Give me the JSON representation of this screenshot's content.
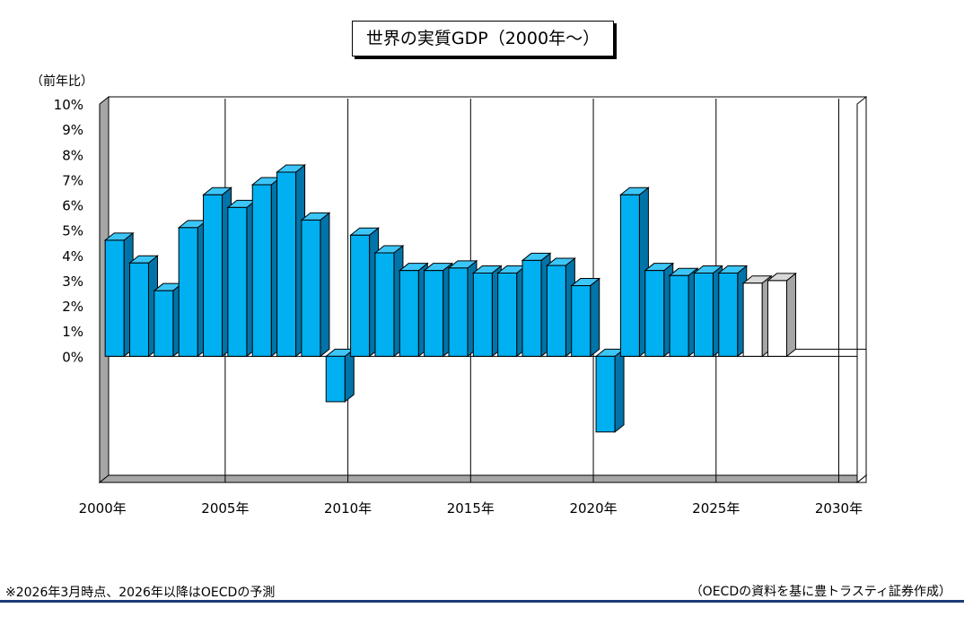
{
  "chart_data": {
    "type": "bar",
    "title": "世界の実質GDP（2000年〜）",
    "unit_label": "（前年比）",
    "years": [
      2000,
      2001,
      2002,
      2003,
      2004,
      2005,
      2006,
      2007,
      2008,
      2009,
      2010,
      2011,
      2012,
      2013,
      2014,
      2015,
      2016,
      2017,
      2018,
      2019,
      2020,
      2021,
      2022,
      2023,
      2024,
      2025,
      2026,
      2027
    ],
    "values": [
      4.6,
      3.7,
      2.6,
      5.1,
      6.4,
      5.9,
      6.8,
      7.3,
      5.4,
      -1.8,
      4.8,
      4.1,
      3.4,
      3.4,
      3.5,
      3.3,
      3.3,
      3.8,
      3.6,
      2.8,
      -3.0,
      6.4,
      3.4,
      3.2,
      3.3,
      3.3,
      2.9,
      3.0
    ],
    "forecast_from": 2026,
    "ylim": [
      -5,
      10
    ],
    "yticks": [
      "10%",
      "9%",
      "8%",
      "7%",
      "6%",
      "5%",
      "4%",
      "3%",
      "2%",
      "1%",
      "0%"
    ],
    "xticks": [
      "2000年",
      "2005年",
      "2010年",
      "2015年",
      "2020年",
      "2025年",
      "2030年"
    ],
    "grid": true,
    "colors": {
      "actual": "#00b0f0",
      "actual_side": "#0074a8",
      "actual_top": "#3cc6f8",
      "forecast": "#ffffff",
      "forecast_side": "#a6a6a6"
    }
  },
  "footnote": "※2026年3月時点、2026年以降はOECDの予測",
  "source": "（OECDの資料を基に豊トラスティ証券作成）"
}
